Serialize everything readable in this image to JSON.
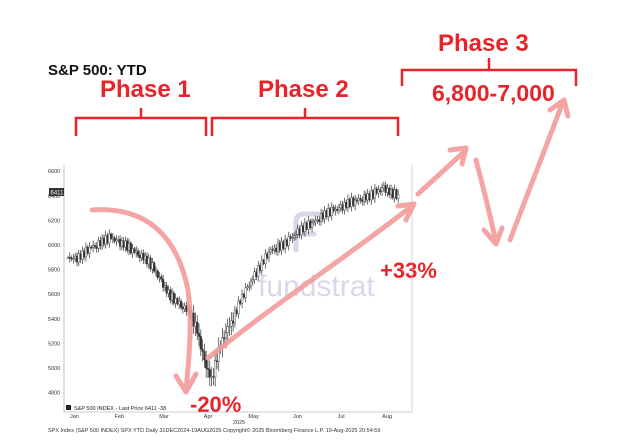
{
  "title": "S&P 500: YTD",
  "phases": {
    "phase1": "Phase 1",
    "phase2": "Phase 2",
    "phase3": "Phase 3",
    "target": "6,800-7,000"
  },
  "annotations": {
    "drawdown": "-20%",
    "rally": "+33%"
  },
  "legend": {
    "label": "S&P 500 INDEX - Last Price 6411 -38"
  },
  "last_price_tag": "6411",
  "watermark": "fundstrat",
  "year_label": "2025",
  "footer": "SPX Index (S&P 500 INDEX) SPX YTD  Daily 31DEC2024-19AUG2025        Copyright© 2025 Bloomberg Finance L.P.        19-Aug-2025 20:54:59",
  "colors": {
    "annotation": "#e8232a",
    "arrow": "#f4a0a0",
    "candles": "#333333"
  },
  "chart_data": {
    "type": "line",
    "title": "S&P 500: YTD",
    "ylim": [
      4700,
      6650
    ],
    "yticks": [
      "6600",
      "6400",
      "6200",
      "6000",
      "5800",
      "5600",
      "5400",
      "5200",
      "5000",
      "4800"
    ],
    "xticks": [
      "Jan",
      "Feb",
      "Mar",
      "Apr",
      "May",
      "Jun",
      "Jul",
      "Aug"
    ],
    "grid": false,
    "legend": "bottom-left",
    "series": [
      {
        "name": "S&P 500 INDEX - Last Price",
        "values": [
          5900,
          5880,
          5920,
          5980,
          6000,
          6040,
          6060,
          6020,
          6000,
          5960,
          5920,
          5880,
          5800,
          5700,
          5600,
          5550,
          5500,
          5450,
          5300,
          5050,
          4900,
          5150,
          5300,
          5400,
          5550,
          5650,
          5750,
          5850,
          5950,
          5980,
          6000,
          6050,
          6100,
          6150,
          6180,
          6220,
          6260,
          6280,
          6300,
          6340,
          6360,
          6380,
          6400,
          6430,
          6460,
          6420,
          6411
        ]
      }
    ],
    "last_price": 6411,
    "last_change": -38
  }
}
